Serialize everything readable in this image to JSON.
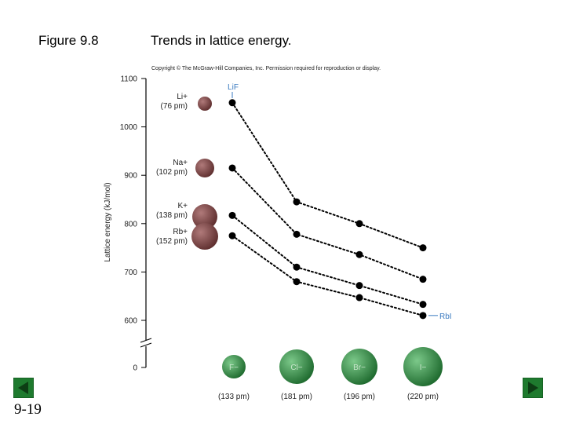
{
  "slide": {
    "figure_label": "Figure 9.8",
    "title": "Trends in lattice energy.",
    "copyright": "Copyright © The McGraw-Hill Companies, Inc. Permission required for reproduction or display.",
    "page_number": "9-19",
    "colors": {
      "cation": "#8a4a4a",
      "anion": "#2f8a3f",
      "nav": "#1e7a2e",
      "points": "#000000"
    }
  },
  "chart_data": {
    "type": "line",
    "title": "Trends in lattice energy.",
    "ylabel": "Lattice energy (kJ/mol)",
    "xlabel": "",
    "ylim": [
      0,
      1100
    ],
    "axis_break": true,
    "yticks": [
      "1100",
      "1000",
      "900",
      "800",
      "700",
      "600",
      "0"
    ],
    "categories": [
      {
        "ion": "F−",
        "radius": "(133 pm)"
      },
      {
        "ion": "Cl−",
        "radius": "(181 pm)"
      },
      {
        "ion": "Br−",
        "radius": "(196 pm)"
      },
      {
        "ion": "I−",
        "radius": "(220 pm)"
      }
    ],
    "series": [
      {
        "name": "Li+",
        "radius": "(76 pm)",
        "values": [
          1050,
          845,
          800,
          750
        ]
      },
      {
        "name": "Na+",
        "radius": "(102 pm)",
        "values": [
          915,
          778,
          736,
          685
        ]
      },
      {
        "name": "K+",
        "radius": "(138 pm)",
        "values": [
          817,
          710,
          672,
          633
        ]
      },
      {
        "name": "Rb+",
        "radius": "(152 pm)",
        "values": [
          775,
          680,
          647,
          610
        ]
      }
    ],
    "annotations": [
      {
        "text": "LiF"
      },
      {
        "text": "RbI"
      }
    ]
  }
}
